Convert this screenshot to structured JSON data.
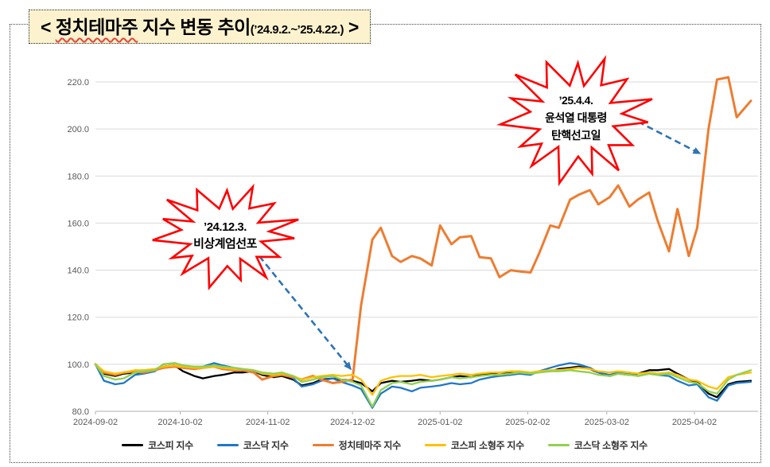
{
  "title": {
    "prefix": "< ",
    "highlight": "정치테마주",
    "rest": " 지수 변동 추이",
    "period": "(’24.9.2.~’25.4.22.)",
    "suffix": " >"
  },
  "annotations": [
    {
      "id": "martial-law",
      "lines": [
        "’24.12.3.",
        "비상계엄선포"
      ],
      "points_to": {
        "date": "2024-12-03",
        "value": 96
      }
    },
    {
      "id": "impeachment",
      "lines": [
        "’25.4.4.",
        "윤석열 대통령",
        "탄핵선고일"
      ],
      "points_to": {
        "date": "2025-04-05",
        "value": 190
      }
    }
  ],
  "chart_data": {
    "type": "line",
    "title": "정치테마주 지수 변동 추이",
    "period_shown": "2024-09-02 ~ 2025-04-22",
    "ylim": [
      80,
      220
    ],
    "y_ticks": [
      80,
      100,
      120,
      140,
      160,
      180,
      200,
      220
    ],
    "y_tick_labels": [
      "80.0",
      "100.0",
      "120.0",
      "140.0",
      "160.0",
      "180.0",
      "200.0",
      "220.0"
    ],
    "x_tick_labels": [
      "2024-09-02",
      "2024-10-02",
      "2024-11-02",
      "2024-12-02",
      "2025-01-02",
      "2025-02-02",
      "2025-03-02",
      "2025-04-02"
    ],
    "grid": true,
    "legend_position": "bottom",
    "x_dates": [
      "2024-09-02",
      "2024-09-05",
      "2024-09-09",
      "2024-09-12",
      "2024-09-16",
      "2024-09-19",
      "2024-09-23",
      "2024-09-26",
      "2024-09-30",
      "2024-10-03",
      "2024-10-07",
      "2024-10-10",
      "2024-10-14",
      "2024-10-17",
      "2024-10-21",
      "2024-10-24",
      "2024-10-28",
      "2024-10-31",
      "2024-11-04",
      "2024-11-07",
      "2024-11-11",
      "2024-11-14",
      "2024-11-18",
      "2024-11-21",
      "2024-11-25",
      "2024-11-28",
      "2024-12-02",
      "2024-12-05",
      "2024-12-09",
      "2024-12-12",
      "2024-12-16",
      "2024-12-19",
      "2024-12-23",
      "2024-12-26",
      "2024-12-30",
      "2025-01-02",
      "2025-01-06",
      "2025-01-09",
      "2025-01-13",
      "2025-01-16",
      "2025-01-20",
      "2025-01-23",
      "2025-01-27",
      "2025-01-30",
      "2025-02-03",
      "2025-02-06",
      "2025-02-10",
      "2025-02-13",
      "2025-02-17",
      "2025-02-20",
      "2025-02-24",
      "2025-02-27",
      "2025-03-03",
      "2025-03-06",
      "2025-03-10",
      "2025-03-13",
      "2025-03-17",
      "2025-03-20",
      "2025-03-24",
      "2025-03-27",
      "2025-03-31",
      "2025-04-03",
      "2025-04-07",
      "2025-04-10",
      "2025-04-14",
      "2025-04-17",
      "2025-04-22"
    ],
    "series": [
      {
        "key": "kospi",
        "name": "코스피 지수",
        "color": "#000000",
        "values": [
          100,
          96,
          95,
          96,
          96.5,
          96.5,
          97.5,
          99,
          99.5,
          97,
          95,
          94,
          95,
          95.5,
          96.5,
          96.5,
          97,
          95.5,
          94.5,
          95,
          93.5,
          91,
          92,
          93.5,
          94,
          93.5,
          93,
          92,
          88.5,
          92,
          93,
          92.5,
          93,
          93.5,
          93,
          93.5,
          94.5,
          95,
          94.5,
          95.5,
          96,
          96.5,
          96.5,
          97,
          96,
          97,
          97,
          98,
          98.5,
          99,
          98,
          96.5,
          95,
          96,
          95.5,
          96,
          97.5,
          97.5,
          98,
          96,
          93.5,
          92.5,
          87.5,
          86,
          91.5,
          92.5,
          93
        ]
      },
      {
        "key": "kosdaq",
        "name": "코스닥 지수",
        "color": "#2077C8",
        "values": [
          100,
          93,
          91.5,
          92,
          95.5,
          96,
          97,
          100,
          100.5,
          99.5,
          98.5,
          99,
          100.5,
          99.5,
          98.5,
          98,
          97,
          96,
          95.5,
          96,
          94,
          90.5,
          91.5,
          93,
          94,
          92.5,
          91,
          89.5,
          81.5,
          87.5,
          90.5,
          90,
          88.5,
          90,
          90.5,
          91,
          92,
          91.5,
          92,
          93.5,
          94.5,
          95,
          95.5,
          96,
          95.5,
          97,
          98.5,
          99.5,
          100.5,
          100,
          98.5,
          96.5,
          95.5,
          96.5,
          96,
          95,
          96,
          95.5,
          95,
          93,
          91,
          91.5,
          86,
          84.5,
          91,
          92,
          92.5
        ]
      },
      {
        "key": "political-theme",
        "name": "정치테마주 지수",
        "color": "#ED7D31",
        "values": [
          100,
          96.5,
          95.5,
          96.5,
          97,
          96.5,
          97.5,
          98.5,
          99,
          98.5,
          98,
          98.5,
          99,
          98,
          97.5,
          97.5,
          96.5,
          93.5,
          95,
          95.5,
          94.5,
          93.5,
          95,
          93.5,
          92,
          92.5,
          93.5,
          125,
          153,
          158,
          146,
          143.5,
          146,
          145,
          142,
          159,
          151,
          154,
          154.5,
          145.5,
          145,
          137,
          140,
          139.5,
          139,
          147,
          159,
          158,
          170,
          172,
          174,
          168,
          171,
          176,
          167,
          170,
          173,
          161,
          148,
          166,
          146,
          158,
          200,
          221,
          222,
          205,
          212
        ]
      },
      {
        "key": "kospi-smallcap",
        "name": "코스피 소형주 지수",
        "color": "#FFC000",
        "values": [
          100,
          97,
          96,
          96.5,
          97.5,
          97.5,
          98,
          99,
          99.5,
          99,
          98.5,
          98.5,
          99,
          98.5,
          98,
          98,
          97.5,
          96,
          95.5,
          96,
          95,
          93.5,
          94.5,
          95,
          95.5,
          95,
          95.5,
          93.5,
          87,
          93,
          94.5,
          95,
          95,
          95.5,
          94.5,
          95,
          95.5,
          96,
          95.5,
          96,
          96.5,
          96.5,
          97,
          97,
          96.5,
          97,
          97.5,
          97.5,
          98,
          98.5,
          98,
          97,
          96.5,
          97,
          96.5,
          96,
          96.5,
          96,
          96.5,
          95.5,
          93.5,
          93,
          90.5,
          89.5,
          94.5,
          95.5,
          96.5
        ]
      },
      {
        "key": "kosdaq-smallcap",
        "name": "코스닥 소형주 지수",
        "color": "#92D050",
        "values": [
          100,
          95,
          93.5,
          94,
          96.5,
          97,
          97.5,
          100,
          100.5,
          99.5,
          99,
          99,
          99.5,
          99,
          98.5,
          98,
          97.5,
          96.5,
          96,
          96.5,
          95,
          92.5,
          93.5,
          94.5,
          95,
          93.5,
          92.5,
          91,
          82,
          89,
          92,
          92.5,
          91.5,
          92.5,
          93,
          93.5,
          94.5,
          94,
          94.5,
          95,
          95.5,
          95.5,
          96,
          96.5,
          96,
          96.5,
          97,
          97,
          97.5,
          97,
          96.5,
          95.5,
          95,
          96,
          95.5,
          95,
          96,
          95.5,
          96,
          94.5,
          92.5,
          92,
          88.5,
          87.5,
          93.5,
          95.5,
          97.5
        ]
      }
    ]
  },
  "colors": {
    "starburst_outline": "#FF0000",
    "starburst_fill": "#FFFFFF",
    "arrow": "#2E74B5",
    "gridline": "#D9D9D9",
    "axis_line": "#BFBFBF",
    "axis_text": "#595959",
    "title_box_bg": "#FCF3CE"
  }
}
